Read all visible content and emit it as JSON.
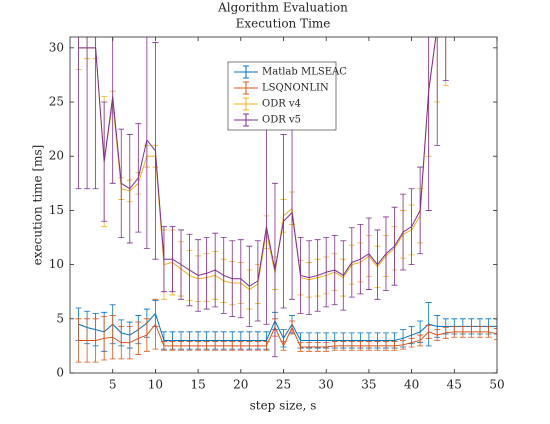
{
  "chart_data": {
    "type": "errorbar_line",
    "title": "Algorithm Evaluation",
    "subtitle": "Execution Time",
    "x_label": "step size, s",
    "y_label": "execution time [ms]",
    "x": [
      1,
      2,
      3,
      4,
      5,
      6,
      7,
      8,
      9,
      10,
      11,
      12,
      13,
      14,
      15,
      16,
      17,
      18,
      19,
      20,
      21,
      22,
      23,
      24,
      25,
      26,
      27,
      28,
      29,
      30,
      31,
      32,
      33,
      34,
      35,
      36,
      37,
      38,
      39,
      40,
      41,
      42,
      43,
      44,
      45,
      46,
      47,
      48,
      49,
      50
    ],
    "xlim": [
      0,
      50
    ],
    "xticks": [
      5,
      10,
      15,
      20,
      25,
      30,
      35,
      40,
      45,
      50
    ],
    "ylim": [
      0,
      31
    ],
    "yticks": [
      0,
      5,
      10,
      15,
      20,
      25,
      30
    ],
    "legend": "upper-center",
    "series": [
      {
        "name": "Matlab MLSEAC",
        "color": "#0072bd",
        "values": [
          4.5,
          4.2,
          4,
          3.8,
          4.5,
          3.7,
          3.5,
          4,
          4.6,
          5.5,
          3,
          3,
          3,
          3,
          3,
          3,
          3,
          3,
          3,
          3,
          3,
          3,
          3,
          4.8,
          3.2,
          4.5,
          3,
          3,
          3,
          3,
          3,
          3,
          3,
          3,
          3,
          3,
          3,
          3,
          3.2,
          3.5,
          3.8,
          4.5,
          4.3,
          4.3,
          4.3,
          4.3,
          4.3,
          4.3,
          4.3,
          4.3
        ],
        "errors": [
          1.5,
          1.5,
          1.5,
          1.8,
          1.8,
          1.2,
          1.2,
          1.3,
          1.3,
          1.2,
          0.8,
          0.8,
          0.8,
          0.8,
          0.8,
          0.8,
          0.8,
          0.8,
          0.8,
          0.8,
          0.8,
          0.8,
          0.8,
          0.8,
          0.8,
          0.8,
          0.7,
          0.7,
          0.7,
          0.7,
          0.7,
          0.7,
          0.7,
          0.7,
          0.7,
          0.7,
          0.7,
          0.7,
          0.8,
          0.8,
          1,
          2,
          1,
          0.7,
          0.7,
          0.7,
          0.7,
          0.7,
          0.7,
          0.7
        ]
      },
      {
        "name": "LSQNONLIN",
        "color": "#d95319",
        "values": [
          3,
          3,
          3,
          3.2,
          3.3,
          2.8,
          2.8,
          3.2,
          3.5,
          4.5,
          2.5,
          2.5,
          2.5,
          2.5,
          2.5,
          2.5,
          2.5,
          2.5,
          2.5,
          2.5,
          2.5,
          2.5,
          2.5,
          4.2,
          2.5,
          4.2,
          2.4,
          2.4,
          2.4,
          2.4,
          2.5,
          2.5,
          2.5,
          2.5,
          2.5,
          2.5,
          2.5,
          2.5,
          2.6,
          2.8,
          3,
          3.8,
          3.5,
          3.7,
          3.8,
          3.8,
          3.8,
          3.8,
          3.8,
          3.6
        ],
        "errors": [
          2,
          2,
          2,
          2,
          2,
          1.5,
          1.5,
          1.5,
          1.5,
          2.3,
          0.4,
          0.4,
          0.4,
          0.4,
          0.4,
          0.4,
          0.4,
          0.4,
          0.4,
          0.4,
          0.4,
          0.4,
          0.4,
          0.8,
          0.4,
          0.6,
          0.4,
          0.4,
          0.4,
          0.4,
          0.4,
          0.4,
          0.4,
          0.4,
          0.4,
          0.4,
          0.4,
          0.4,
          0.4,
          0.4,
          0.5,
          0.6,
          0.5,
          0.5,
          0.5,
          0.5,
          0.5,
          0.5,
          0.5,
          0.5
        ]
      },
      {
        "name": "ODR v4",
        "color": "#edb120",
        "values": [
          30,
          30,
          30,
          19.5,
          25,
          17,
          16.8,
          17.5,
          20,
          20,
          10,
          10.2,
          9.6,
          9,
          8.7,
          8.8,
          9,
          8.5,
          8.3,
          8.3,
          7.7,
          8.2,
          13,
          9.2,
          14.5,
          15.2,
          8.8,
          8.6,
          8.8,
          9,
          9.3,
          8.8,
          10,
          10.2,
          10.8,
          9.8,
          10.8,
          11.5,
          12.8,
          13.2,
          14.5,
          26,
          32,
          34,
          null,
          null,
          null,
          null,
          null,
          null
        ],
        "errors": [
          2,
          1,
          1,
          6,
          1,
          1,
          1,
          1,
          1,
          1,
          3.2,
          3,
          2.5,
          2.3,
          2.1,
          2.2,
          2.2,
          2,
          2,
          1.9,
          1.8,
          1.8,
          1.5,
          1.5,
          1.5,
          1.5,
          1.6,
          1.6,
          1.7,
          1.7,
          1.7,
          1.7,
          1.8,
          1.8,
          1.9,
          1.9,
          1.9,
          2,
          2.2,
          2.3,
          2.5,
          6,
          7,
          7.5,
          null,
          null,
          null,
          null,
          null,
          null
        ]
      },
      {
        "name": "ODR v5",
        "color": "#7e2f8e",
        "values": [
          30,
          30,
          30,
          19.5,
          25.5,
          17.5,
          17,
          18,
          21.5,
          20.5,
          10.5,
          10.5,
          10,
          9.5,
          9,
          9.2,
          9.5,
          9,
          8.7,
          8.7,
          8,
          8.5,
          13.5,
          9.5,
          14,
          14.8,
          9,
          8.8,
          9,
          9.3,
          9.5,
          9,
          10.2,
          10.5,
          11,
          10,
          11,
          11.7,
          13,
          13.5,
          15,
          26,
          32,
          34,
          null,
          null,
          null,
          null,
          null,
          null
        ],
        "errors": [
          13,
          13,
          13,
          5.5,
          8,
          5,
          5,
          5,
          10,
          10,
          3,
          3,
          3.2,
          3.3,
          3.3,
          3.3,
          3.4,
          3.5,
          3.5,
          3.6,
          3.7,
          3.7,
          9,
          8,
          8,
          8,
          3.5,
          3.4,
          3.3,
          3.2,
          3.2,
          3.2,
          3.2,
          3.2,
          3.3,
          3.2,
          3.4,
          3.6,
          3.5,
          3.5,
          4,
          11,
          11,
          7,
          null,
          null,
          null,
          null,
          null,
          null
        ]
      }
    ]
  }
}
